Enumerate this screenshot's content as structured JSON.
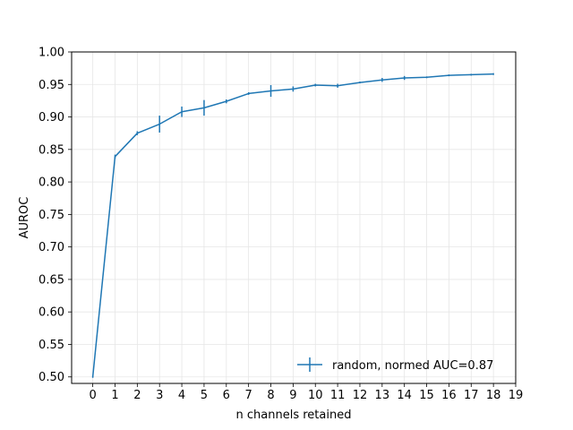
{
  "chart_data": {
    "type": "line",
    "title": "",
    "xlabel": "n channels retained",
    "ylabel": "AUROC",
    "xlim": [
      -0.95,
      19
    ],
    "ylim": [
      0.49,
      1.0
    ],
    "xticks": [
      0,
      1,
      2,
      3,
      4,
      5,
      6,
      7,
      8,
      9,
      10,
      11,
      12,
      13,
      14,
      15,
      16,
      17,
      18,
      19
    ],
    "yticks": [
      0.5,
      0.55,
      0.6,
      0.65,
      0.7,
      0.75,
      0.8,
      0.85,
      0.9,
      0.95,
      1.0
    ],
    "ytick_labels": [
      "0.50",
      "0.55",
      "0.60",
      "0.65",
      "0.70",
      "0.75",
      "0.80",
      "0.85",
      "0.90",
      "0.95",
      "1.00"
    ],
    "grid": true,
    "legend_position": "lower-right",
    "series": [
      {
        "name": "random, normed AUC=0.87",
        "color": "#1f77b4",
        "x": [
          0,
          1,
          2,
          3,
          4,
          5,
          6,
          7,
          8,
          9,
          10,
          11,
          12,
          13,
          14,
          15,
          16,
          17,
          18
        ],
        "y": [
          0.5,
          0.839,
          0.875,
          0.889,
          0.908,
          0.914,
          0.924,
          0.936,
          0.94,
          0.943,
          0.949,
          0.948,
          0.953,
          0.957,
          0.96,
          0.961,
          0.964,
          0.965,
          0.966
        ],
        "err": [
          0.0,
          0.003,
          0.003,
          0.013,
          0.008,
          0.012,
          0.003,
          0.002,
          0.009,
          0.004,
          0.002,
          0.003,
          0.001,
          0.003,
          0.003,
          0.001,
          0.001,
          0.001,
          0.001
        ]
      }
    ]
  }
}
